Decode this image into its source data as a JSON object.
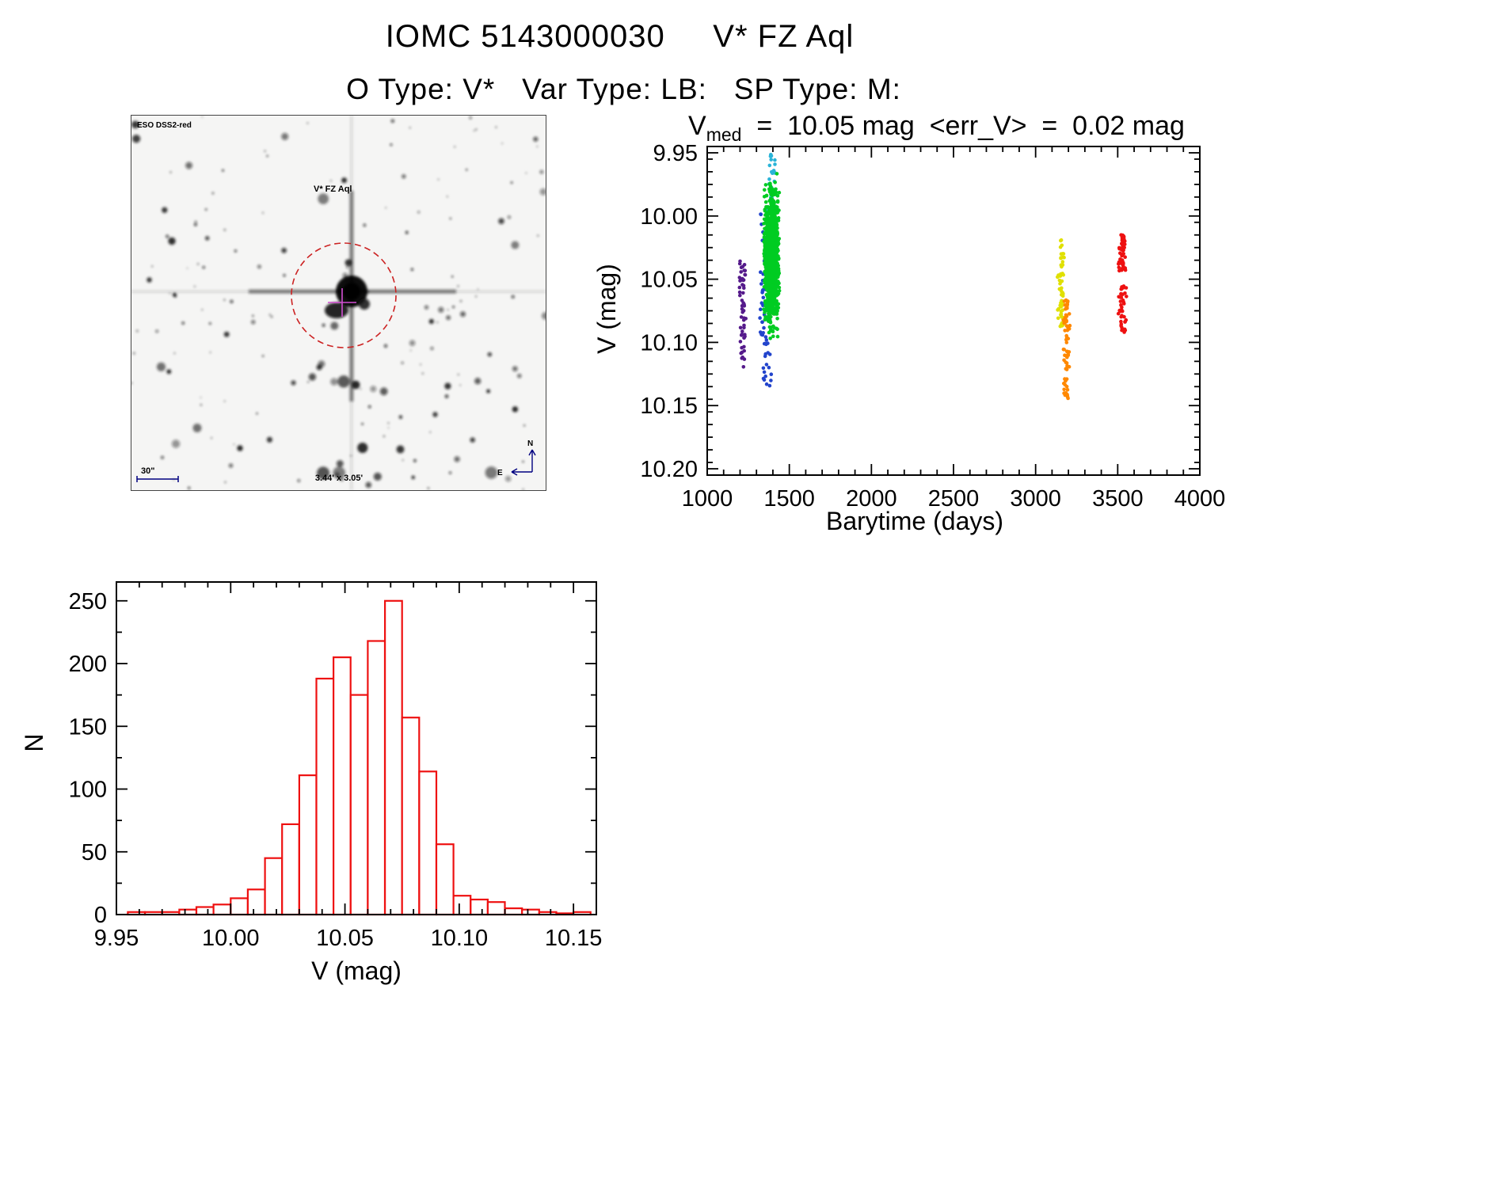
{
  "header": {
    "title": "IOMC 5143000030     V* FZ Aql",
    "subtitle": "O Type: V*   Var Type: LB:   SP Type: M:"
  },
  "sky_image": {
    "survey_label": "ESO DSS2-red",
    "target_label": "V* FZ Aql",
    "scale_label": "30\"",
    "fov_label": "3.44' x 3.05'",
    "compass_north": "N",
    "compass_east": "E",
    "annotation_color": "#000080",
    "target_label_color": "#cc0000",
    "circle_color": "#cc2222",
    "crosshair_color": "#d24fd2"
  },
  "chart_data": [
    {
      "id": "v-vs-barytime",
      "type": "scatter",
      "stats": {
        "var": "V",
        "sub": "med",
        "rest": "  =  10.05 mag  <err_V>  =  0.02 mag"
      },
      "xlabel": "Barytime (days)",
      "ylabel": "V (mag)",
      "xlim": [
        1000,
        4000
      ],
      "ylim": [
        9.945,
        10.205
      ],
      "y_inverted": true,
      "grid": false,
      "xticks": [
        1000,
        1500,
        2000,
        2500,
        3000,
        3500,
        4000
      ],
      "xtick_labels": [
        "1000",
        "1500",
        "2000",
        "2500",
        "3000",
        "3500",
        "4000"
      ],
      "x_minor_step": 100,
      "yticks": [
        9.95,
        10.0,
        10.05,
        10.1,
        10.15,
        10.2
      ],
      "ytick_labels": [
        "9.95",
        "10.00",
        "10.05",
        "10.10",
        "10.15",
        "10.20"
      ],
      "y_minor_step": 0.01,
      "series": [
        {
          "name": "epoch-1-purple",
          "color": "#551a8b",
          "x_center": 1215,
          "x_spread": 35,
          "y_min": 10.035,
          "y_max": 10.12,
          "n": 55,
          "dist": "uniform"
        },
        {
          "name": "epoch-2-blue",
          "color": "#2244cc",
          "x_center": 1360,
          "x_spread": 70,
          "y_min": 9.995,
          "y_max": 10.135,
          "n": 85,
          "dist": "uniform"
        },
        {
          "name": "epoch-2-cyan",
          "color": "#2ab4d8",
          "x_center": 1390,
          "x_spread": 50,
          "y_min": 9.948,
          "y_max": 10.035,
          "n": 45,
          "dist": "uniform"
        },
        {
          "name": "epoch-2-green",
          "color": "#00cc22",
          "x_center": 1392,
          "x_spread": 80,
          "y_min": 9.958,
          "y_max": 10.105,
          "n": 1100,
          "dist": "gauss"
        },
        {
          "name": "epoch-3-yellow",
          "color": "#e0e000",
          "x_center": 3155,
          "x_spread": 40,
          "y_min": 10.018,
          "y_max": 10.088,
          "n": 60,
          "dist": "uniform"
        },
        {
          "name": "epoch-3-orange",
          "color": "#ff8800",
          "x_center": 3190,
          "x_spread": 40,
          "y_min": 10.062,
          "y_max": 10.152,
          "n": 70,
          "dist": "uniform"
        },
        {
          "name": "epoch-4-red",
          "color": "#ee1111",
          "x_center": 3530,
          "x_spread": 45,
          "y_min": 10.015,
          "y_max": 10.092,
          "n": 95,
          "dist": "bimodal"
        }
      ]
    },
    {
      "id": "v-histogram",
      "type": "bar",
      "xlabel": "V (mag)",
      "ylabel": "N",
      "xlim": [
        9.95,
        10.16
      ],
      "ylim": [
        0,
        265
      ],
      "bar_color": "#ee1111",
      "bin_start": 9.955,
      "bin_width": 0.0075,
      "counts": [
        2,
        2,
        2,
        4,
        6,
        8,
        13,
        20,
        45,
        72,
        111,
        188,
        205,
        175,
        218,
        250,
        157,
        114,
        56,
        15,
        12,
        10,
        5,
        4,
        2,
        1,
        2
      ],
      "xticks": [
        9.95,
        10.0,
        10.05,
        10.1,
        10.15
      ],
      "xtick_labels": [
        "9.95",
        "10.00",
        "10.05",
        "10.10",
        "10.15"
      ],
      "x_minor_step": 0.01,
      "yticks": [
        0,
        50,
        100,
        150,
        200,
        250
      ],
      "ytick_labels": [
        "0",
        "50",
        "100",
        "150",
        "200",
        "250"
      ],
      "y_minor_step": 25
    }
  ]
}
